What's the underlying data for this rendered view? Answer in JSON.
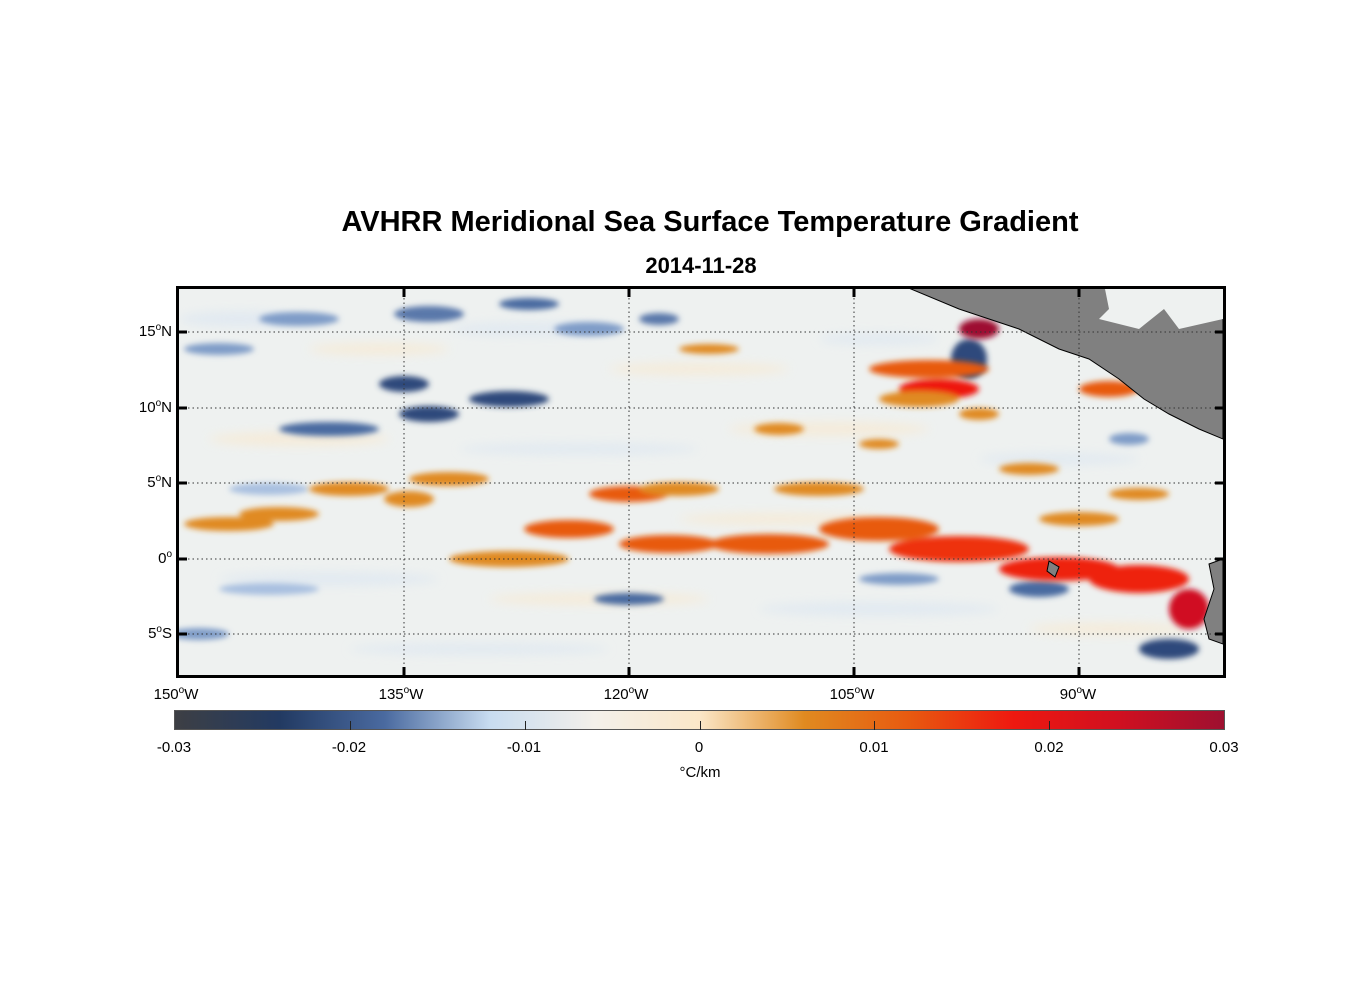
{
  "title": "AVHRR Meridional Sea Surface Temperature Gradient",
  "subtitle": "2014-11-28",
  "lat_labels": [
    {
      "deg": "15",
      "hemi": "N"
    },
    {
      "deg": "10",
      "hemi": "N"
    },
    {
      "deg": "5",
      "hemi": "N"
    },
    {
      "deg": "0",
      "hemi": ""
    },
    {
      "deg": "5",
      "hemi": "S"
    }
  ],
  "lon_labels": [
    {
      "deg": "150",
      "hemi": "W"
    },
    {
      "deg": "135",
      "hemi": "W"
    },
    {
      "deg": "120",
      "hemi": "W"
    },
    {
      "deg": "105",
      "hemi": "W"
    },
    {
      "deg": "90",
      "hemi": "W"
    }
  ],
  "colorbar": {
    "ticks": [
      "-0.03",
      "-0.02",
      "-0.01",
      "0",
      "0.01",
      "0.02",
      "0.03"
    ],
    "unit": "°C/km",
    "range": [
      -0.03,
      0.03
    ],
    "colors": [
      "#3d3f44",
      "#223a62",
      "#4a6aa0",
      "#c8dcf0",
      "#f3f0ea",
      "#fbe7c8",
      "#e08a20",
      "#e85a10",
      "#ee1810",
      "#d01020",
      "#9e1030"
    ]
  },
  "map": {
    "region": {
      "lon": [
        -150,
        -80
      ],
      "lat": [
        -8,
        18
      ]
    },
    "land_color": "#808080",
    "ocean_base": "#eef1f0"
  }
}
